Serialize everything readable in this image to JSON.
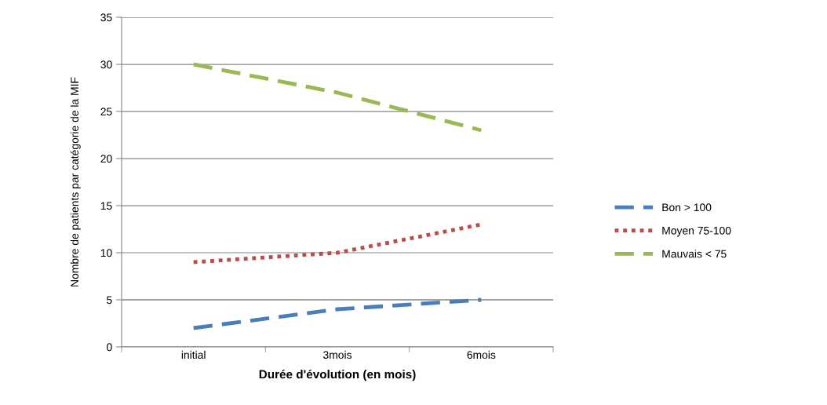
{
  "chart_data": {
    "type": "line",
    "xlabel": "Durée d'évolution (en mois)",
    "ylabel": "Nombre de patients par catégorie de la MIF",
    "categories": [
      "initial",
      "3mois",
      "6mois"
    ],
    "series": [
      {
        "name": "Bon > 100",
        "color": "#4a7ebb",
        "values": [
          2,
          4,
          5
        ],
        "line_style": "dashed"
      },
      {
        "name": "Moyen 75-100",
        "color": "#be4b48",
        "values": [
          9,
          10,
          13
        ],
        "line_style": "dotted"
      },
      {
        "name": "Mauvais < 75",
        "color": "#98b954",
        "values": [
          30,
          27,
          23
        ],
        "line_style": "dashed"
      }
    ],
    "ylim": [
      0,
      35
    ],
    "yticks": [
      0,
      5,
      10,
      15,
      20,
      25,
      30,
      35
    ],
    "grid": "y",
    "legend": "right",
    "marker": "none"
  }
}
